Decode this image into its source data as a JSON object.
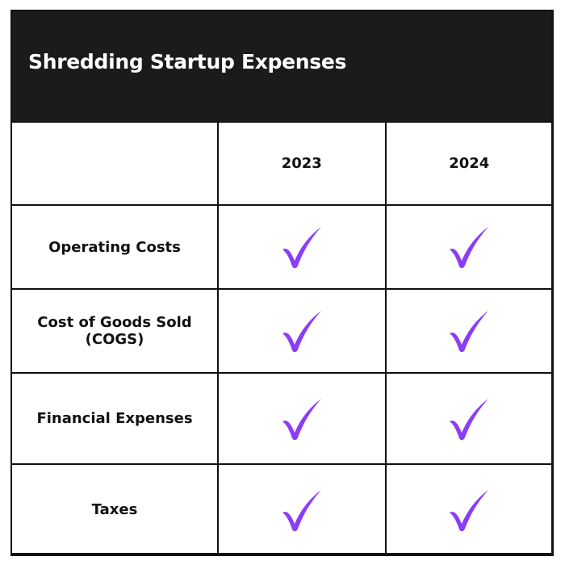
{
  "title": "Shredding Startup Expenses",
  "columns": [
    "",
    "2023",
    "2024"
  ],
  "rows": [
    {
      "label": "Operating Costs",
      "2023": "check-icon",
      "2024": "check-icon"
    },
    {
      "label": "Cost of Goods Sold (COGS)",
      "2023": "check-icon",
      "2024": "check-icon"
    },
    {
      "label": "Financial Expenses",
      "2023": "check-icon",
      "2024": "check-icon"
    },
    {
      "label": "Taxes",
      "2023": "check-icon",
      "2024": "check-icon"
    }
  ],
  "colors": {
    "header_bg": "#1b1b1b",
    "check": "#8b3cf7"
  }
}
